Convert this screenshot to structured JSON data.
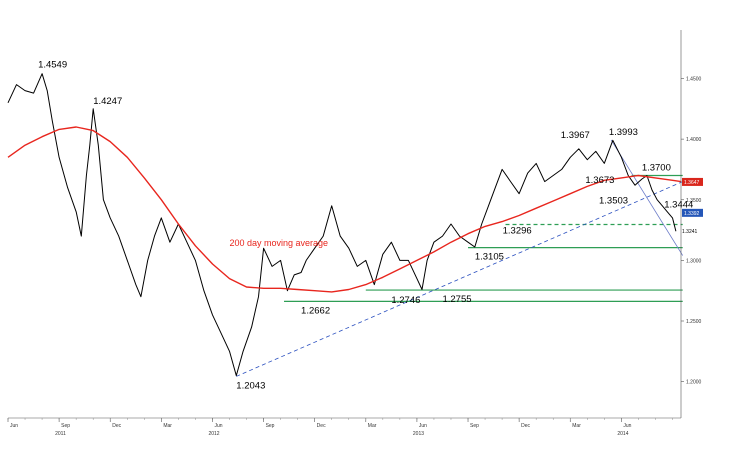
{
  "chart_data": {
    "type": "line",
    "title": "",
    "xlabel": "",
    "ylabel": "",
    "ylim": [
      1.17,
      1.49
    ],
    "y_ticks": [
      "1.4500",
      "1.4000",
      "1.3500",
      "1.3000",
      "1.2500",
      "1.2000"
    ],
    "y_tick_values": [
      1.45,
      1.4,
      1.35,
      1.3,
      1.25,
      1.2
    ],
    "x_ticks": [
      "Jun",
      "Sep",
      "Dec",
      "Mar",
      "Jun",
      "Sep",
      "Dec",
      "Mar",
      "Jun",
      "Sep",
      "Dec",
      "Mar",
      "Jun"
    ],
    "x_tick_index": [
      0,
      3,
      6,
      9,
      12,
      15,
      18,
      21,
      24,
      27,
      30,
      33,
      36
    ],
    "x_years": [
      {
        "label": "2011",
        "index": 3
      },
      {
        "label": "2012",
        "index": 12
      },
      {
        "label": "2013",
        "index": 24
      },
      {
        "label": "2014",
        "index": 36
      }
    ],
    "x_range_months": [
      0,
      39.5
    ],
    "series": [
      {
        "name": "",
        "color": "#000000",
        "points": [
          [
            0,
            1.43
          ],
          [
            0.5,
            1.445
          ],
          [
            1,
            1.44
          ],
          [
            1.5,
            1.438
          ],
          [
            2,
            1.454
          ],
          [
            2.3,
            1.44
          ],
          [
            2.6,
            1.415
          ],
          [
            3,
            1.385
          ],
          [
            3.5,
            1.36
          ],
          [
            4,
            1.34
          ],
          [
            4.3,
            1.32
          ],
          [
            4.6,
            1.37
          ],
          [
            4.8,
            1.395
          ],
          [
            5,
            1.425
          ],
          [
            5.3,
            1.395
          ],
          [
            5.6,
            1.35
          ],
          [
            6,
            1.335
          ],
          [
            6.5,
            1.32
          ],
          [
            7,
            1.3
          ],
          [
            7.5,
            1.28
          ],
          [
            7.8,
            1.27
          ],
          [
            8.2,
            1.3
          ],
          [
            8.6,
            1.32
          ],
          [
            9,
            1.335
          ],
          [
            9.5,
            1.315
          ],
          [
            10,
            1.33
          ],
          [
            10.5,
            1.315
          ],
          [
            11,
            1.3
          ],
          [
            11.5,
            1.275
          ],
          [
            12,
            1.255
          ],
          [
            12.5,
            1.24
          ],
          [
            13,
            1.225
          ],
          [
            13.4,
            1.205
          ],
          [
            13.8,
            1.225
          ],
          [
            14.3,
            1.245
          ],
          [
            14.7,
            1.27
          ],
          [
            15,
            1.31
          ],
          [
            15.5,
            1.295
          ],
          [
            16,
            1.3
          ],
          [
            16.4,
            1.275
          ],
          [
            16.8,
            1.288
          ],
          [
            17.2,
            1.29
          ],
          [
            17.5,
            1.3
          ],
          [
            18,
            1.31
          ],
          [
            18.5,
            1.32
          ],
          [
            19,
            1.345
          ],
          [
            19.5,
            1.32
          ],
          [
            20,
            1.31
          ],
          [
            20.5,
            1.295
          ],
          [
            21,
            1.3
          ],
          [
            21.5,
            1.28
          ],
          [
            22,
            1.305
          ],
          [
            22.5,
            1.315
          ],
          [
            23,
            1.3
          ],
          [
            23.5,
            1.3
          ],
          [
            24,
            1.285
          ],
          [
            24.3,
            1.276
          ],
          [
            24.6,
            1.3
          ],
          [
            25,
            1.315
          ],
          [
            25.5,
            1.32
          ],
          [
            26,
            1.33
          ],
          [
            26.5,
            1.32
          ],
          [
            27,
            1.315
          ],
          [
            27.4,
            1.311
          ],
          [
            27.8,
            1.33
          ],
          [
            28.2,
            1.345
          ],
          [
            28.6,
            1.36
          ],
          [
            29,
            1.375
          ],
          [
            29.5,
            1.365
          ],
          [
            30,
            1.355
          ],
          [
            30.5,
            1.372
          ],
          [
            31,
            1.38
          ],
          [
            31.5,
            1.365
          ],
          [
            32,
            1.37
          ],
          [
            32.5,
            1.375
          ],
          [
            33,
            1.385
          ],
          [
            33.5,
            1.392
          ],
          [
            34,
            1.383
          ],
          [
            34.5,
            1.39
          ],
          [
            35,
            1.38
          ],
          [
            35.5,
            1.399
          ],
          [
            36,
            1.385
          ],
          [
            36.4,
            1.37
          ],
          [
            36.8,
            1.362
          ],
          [
            37.2,
            1.367
          ],
          [
            37.5,
            1.37
          ],
          [
            37.8,
            1.358
          ],
          [
            38.1,
            1.35
          ],
          [
            38.4,
            1.345
          ],
          [
            38.7,
            1.34
          ],
          [
            39,
            1.335
          ],
          [
            39.2,
            1.324
          ]
        ]
      },
      {
        "name": "200 day moving average",
        "color": "#e8261e",
        "points": [
          [
            0,
            1.385
          ],
          [
            1,
            1.395
          ],
          [
            2,
            1.402
          ],
          [
            3,
            1.408
          ],
          [
            4,
            1.41
          ],
          [
            5,
            1.407
          ],
          [
            6,
            1.398
          ],
          [
            7,
            1.385
          ],
          [
            8,
            1.368
          ],
          [
            9,
            1.35
          ],
          [
            10,
            1.33
          ],
          [
            11,
            1.312
          ],
          [
            12,
            1.297
          ],
          [
            13,
            1.285
          ],
          [
            14,
            1.278
          ],
          [
            15,
            1.277
          ],
          [
            16,
            1.277
          ],
          [
            17,
            1.276
          ],
          [
            18,
            1.275
          ],
          [
            19,
            1.274
          ],
          [
            20,
            1.276
          ],
          [
            21,
            1.28
          ],
          [
            22,
            1.286
          ],
          [
            23,
            1.293
          ],
          [
            24,
            1.3
          ],
          [
            25,
            1.307
          ],
          [
            26,
            1.315
          ],
          [
            27,
            1.322
          ],
          [
            28,
            1.328
          ],
          [
            29,
            1.332
          ],
          [
            30,
            1.337
          ],
          [
            31,
            1.343
          ],
          [
            32,
            1.349
          ],
          [
            33,
            1.355
          ],
          [
            34,
            1.361
          ],
          [
            35,
            1.366
          ],
          [
            36,
            1.368
          ],
          [
            37,
            1.37
          ],
          [
            38,
            1.368
          ],
          [
            39,
            1.366
          ],
          [
            39.5,
            1.365
          ]
        ]
      }
    ],
    "annotations": [
      {
        "text": "1.4549",
        "month": 2.0,
        "value": 1.4549
      },
      {
        "text": "1.4247",
        "month": 5.0,
        "value": 1.4247
      },
      {
        "text": "1.2043",
        "month": 13.4,
        "value": 1.2043
      },
      {
        "text": "1.2662",
        "month": 17.2,
        "value": 1.2662
      },
      {
        "text": "1.2746",
        "month": 22.5,
        "value": 1.2746
      },
      {
        "text": "1.2755",
        "month": 25.5,
        "value": 1.2755
      },
      {
        "text": "1.3105",
        "month": 27.4,
        "value": 1.3105
      },
      {
        "text": "1.3296",
        "month": 29.5,
        "value": 1.3296
      },
      {
        "text": "1.3967",
        "month": 33.5,
        "value": 1.3967
      },
      {
        "text": "1.3993",
        "month": 35.5,
        "value": 1.3993
      },
      {
        "text": "1.3700",
        "month": 37.2,
        "value": 1.37
      },
      {
        "text": "1.3673",
        "month": 36.0,
        "value": 1.3673
      },
      {
        "text": "1.3503",
        "month": 36.8,
        "value": 1.3503
      },
      {
        "text": "1.3444",
        "month": 38.4,
        "value": 1.3444
      }
    ],
    "horizontal_levels": [
      {
        "value": 1.37,
        "from": 36.6,
        "to": 39.6,
        "style": "solid",
        "color": "#2e9e55"
      },
      {
        "value": 1.3296,
        "from": 29.2,
        "to": 39.6,
        "style": "dashed",
        "color": "#2e9e55"
      },
      {
        "value": 1.3105,
        "from": 27.0,
        "to": 39.6,
        "style": "solid",
        "color": "#2e9e55"
      },
      {
        "value": 1.2755,
        "from": 21.0,
        "to": 39.6,
        "style": "solid",
        "color": "#2e9e55"
      },
      {
        "value": 1.2662,
        "from": 16.2,
        "to": 39.6,
        "style": "solid",
        "color": "#2e9e55"
      }
    ],
    "trend_lines": [
      {
        "from": [
          13.4,
          1.2043
        ],
        "to": [
          39.6,
          1.365
        ],
        "style": "dashed",
        "color": "#2a4fbf"
      },
      {
        "from": [
          35.4,
          1.3993
        ],
        "to": [
          39.6,
          1.304
        ],
        "style": "solid",
        "color": "#6b7bc8"
      }
    ],
    "badges": [
      {
        "text": "1.3647",
        "value": 1.3647,
        "color": "#d9261c"
      },
      {
        "text": "1.3392",
        "value": 1.3392,
        "color": "#2456b8"
      }
    ],
    "last_price": {
      "text": "1.3241",
      "value": 1.3241
    },
    "ma_label": {
      "text": "200 day moving average",
      "month": 13.0,
      "value": 1.312,
      "color": "#e8261e"
    }
  }
}
